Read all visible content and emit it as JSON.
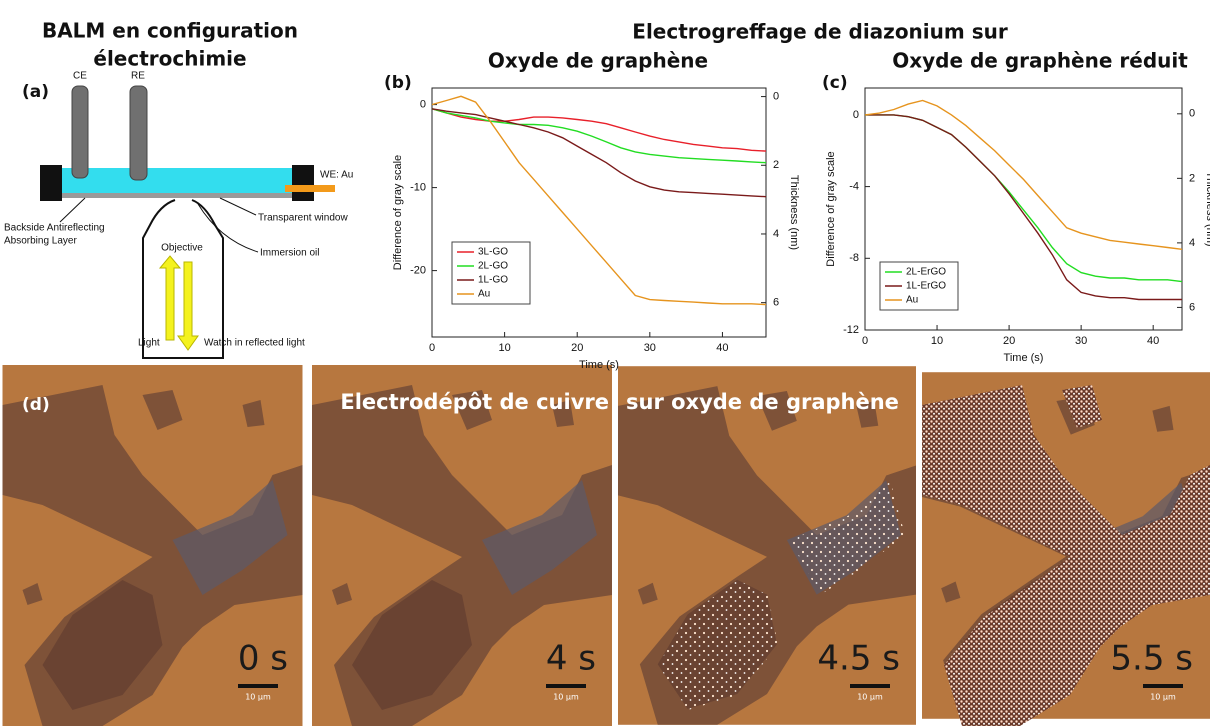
{
  "panel_a": {
    "title_lines": [
      "BALM en configuration",
      "électrochimie"
    ],
    "label": "(a)",
    "labels": {
      "ce": "CE",
      "re": "RE",
      "we": "WE: Au",
      "backside": "Backside Antireflecting",
      "absorbing": "Absorbing Layer",
      "window": "Transparent window",
      "oil": "Immersion oil",
      "objective": "Objective",
      "light": "Light",
      "watch": "Watch in reflected light"
    }
  },
  "header": "Electrogreffage de diazonium sur",
  "chart_data": [
    {
      "type": "line",
      "label": "(b)",
      "title": "Oxyde de graphène",
      "x_label": "Time (s)",
      "y_label": "Difference of gray scale",
      "y2_label": "Thickness (nm)",
      "x": [
        0,
        2,
        4,
        6,
        8,
        10,
        12,
        14,
        16,
        18,
        20,
        22,
        24,
        26,
        28,
        30,
        32,
        34,
        36,
        38,
        40,
        42,
        44,
        46
      ],
      "xlim": [
        0,
        46
      ],
      "xticks": [
        0,
        10,
        20,
        30,
        40
      ],
      "ylim": [
        -28,
        2
      ],
      "yticks": [
        -20,
        -10,
        0
      ],
      "y2lim": [
        7,
        -0.25
      ],
      "y2ticks": [
        0,
        2,
        4,
        6
      ],
      "legend": "lower left",
      "series": [
        {
          "name": "3L-GO",
          "color": "#e8202a",
          "values": [
            -0.5,
            -1,
            -1.5,
            -1.8,
            -2,
            -2,
            -1.8,
            -1.5,
            -1.5,
            -1.6,
            -1.8,
            -2,
            -2.3,
            -2.8,
            -3.3,
            -3.8,
            -4.2,
            -4.5,
            -4.8,
            -5,
            -5.2,
            -5.3,
            -5.5,
            -5.6
          ]
        },
        {
          "name": "2L-GO",
          "color": "#22dd22",
          "values": [
            -0.5,
            -1,
            -1.3,
            -1.6,
            -2,
            -2.2,
            -2.4,
            -2.4,
            -2.5,
            -2.8,
            -3.2,
            -3.8,
            -4.5,
            -5.2,
            -5.7,
            -6,
            -6.2,
            -6.4,
            -6.5,
            -6.6,
            -6.7,
            -6.8,
            -6.9,
            -7
          ]
        },
        {
          "name": "1L-GO",
          "color": "#7a1a1a",
          "values": [
            -0.5,
            -0.8,
            -1,
            -1.2,
            -1.6,
            -2,
            -2.4,
            -2.8,
            -3.3,
            -4,
            -5,
            -6,
            -7,
            -8.2,
            -9.2,
            -9.9,
            -10.3,
            -10.5,
            -10.6,
            -10.7,
            -10.8,
            -10.9,
            -11,
            -11.1
          ]
        },
        {
          "name": "Au",
          "color": "#e6941e",
          "values": [
            0,
            0.5,
            1,
            0.3,
            -2,
            -4.5,
            -7,
            -9,
            -11,
            -13,
            -15,
            -17,
            -19,
            -21,
            -23,
            -23.5,
            -23.6,
            -23.7,
            -23.8,
            -23.9,
            -24,
            -24,
            -24,
            -24.1
          ]
        }
      ]
    },
    {
      "type": "line",
      "label": "(c)",
      "title": "Oxyde de graphène réduit",
      "x_label": "Time (s)",
      "y_label": "Difference of gray scale",
      "y2_label": "Thickness (nm)",
      "x": [
        0,
        2,
        4,
        6,
        8,
        10,
        12,
        14,
        16,
        18,
        20,
        22,
        24,
        26,
        28,
        30,
        32,
        34,
        36,
        38,
        40,
        42,
        44
      ],
      "xlim": [
        0,
        44
      ],
      "xticks": [
        0,
        10,
        20,
        30,
        40
      ],
      "ylim": [
        -12,
        1.5
      ],
      "yticks": [
        -12,
        -8,
        -4,
        0
      ],
      "y2lim": [
        6.7,
        -0.8
      ],
      "y2ticks": [
        0,
        2,
        4,
        6
      ],
      "legend": "lower left",
      "series": [
        {
          "name": "2L-ErGO",
          "color": "#22dd22",
          "values": [
            0,
            0,
            0,
            -0.1,
            -0.3,
            -0.7,
            -1.1,
            -1.8,
            -2.6,
            -3.4,
            -4.3,
            -5.3,
            -6.3,
            -7.4,
            -8.3,
            -8.8,
            -9,
            -9.1,
            -9.1,
            -9.2,
            -9.2,
            -9.2,
            -9.3
          ]
        },
        {
          "name": "1L-ErGO",
          "color": "#7a1a1a",
          "values": [
            0,
            0,
            0,
            -0.1,
            -0.3,
            -0.7,
            -1.1,
            -1.8,
            -2.6,
            -3.4,
            -4.4,
            -5.5,
            -6.6,
            -7.8,
            -9.2,
            -9.9,
            -10.1,
            -10.2,
            -10.2,
            -10.3,
            -10.3,
            -10.3,
            -10.3
          ]
        },
        {
          "name": "Au",
          "color": "#e6941e",
          "values": [
            0,
            0.1,
            0.3,
            0.6,
            0.8,
            0.5,
            0,
            -0.6,
            -1.3,
            -2,
            -2.8,
            -3.6,
            -4.5,
            -5.4,
            -6.3,
            -6.6,
            -6.8,
            -7,
            -7.1,
            -7.2,
            -7.3,
            -7.4,
            -7.5
          ]
        }
      ]
    }
  ],
  "panel_d": {
    "label": "(d)",
    "caption_left": "Electrodépôt de cuivre",
    "caption_right": "sur oxyde de graphène",
    "frames": [
      {
        "time": "0 s",
        "scale": "10 µm"
      },
      {
        "time": "4 s",
        "scale": "10 µm"
      },
      {
        "time": "4.5 s",
        "scale": "10 µm"
      },
      {
        "time": "5.5 s",
        "scale": "10 µm"
      }
    ]
  }
}
